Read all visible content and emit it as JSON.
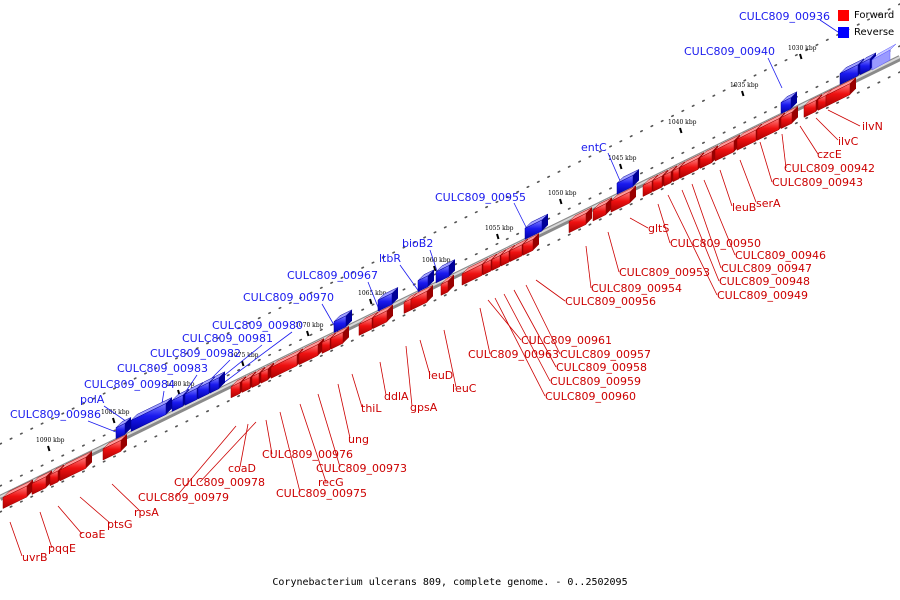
{
  "caption": "Corynebacterium ulcerans 809, complete genome. - 0..2502095",
  "legend": [
    {
      "label": "Forward",
      "color": "#ff0000"
    },
    {
      "label": "Reverse",
      "color": "#0000ff"
    }
  ],
  "colors": {
    "forward": "#ee1111",
    "reverse": "#1a1aee",
    "backbone": "#a8a8a8"
  },
  "ticks": [
    "1030 kbp",
    "1035 kbp",
    "1040 kbp",
    "1045 kbp",
    "1050 kbp",
    "1055 kbp",
    "1060 kbp",
    "1065 kbp",
    "1070 kbp",
    "1075 kbp",
    "1080 kbp",
    "1085 kbp",
    "1090 kbp"
  ],
  "reverse_genes": [
    "CULC809_00936",
    "CULC809_00940",
    "entC",
    "CULC809_00955",
    "bioB2",
    "ltbR",
    "CULC809_00967",
    "CULC809_00970",
    "CULC809_00980",
    "CULC809_00981",
    "CULC809_00982",
    "CULC809_00983",
    "CULC809_00984",
    "polA",
    "CULC809_00986"
  ],
  "forward_genes": [
    "ilvN",
    "ilvC",
    "czcE",
    "CULC809_00942",
    "CULC809_00943",
    "serA",
    "leuB",
    "CULC809_00946",
    "CULC809_00947",
    "CULC809_00948",
    "CULC809_00949",
    "CULC809_00950",
    "gltS",
    "CULC809_00953",
    "CULC809_00954",
    "CULC809_00956",
    "CULC809_00957",
    "CULC809_00958",
    "CULC809_00959",
    "CULC809_00960",
    "CULC809_00961",
    "CULC809_00963",
    "leuC",
    "leuD",
    "gpsA",
    "ddlA",
    "thiL",
    "ung",
    "CULC809_00973",
    "recG",
    "CULC809_00975",
    "CULC809_00976",
    "CULC809_00978",
    "coaD",
    "CULC809_00979",
    "rpsA",
    "ptsG",
    "coaE",
    "pqqE",
    "uvrB"
  ]
}
